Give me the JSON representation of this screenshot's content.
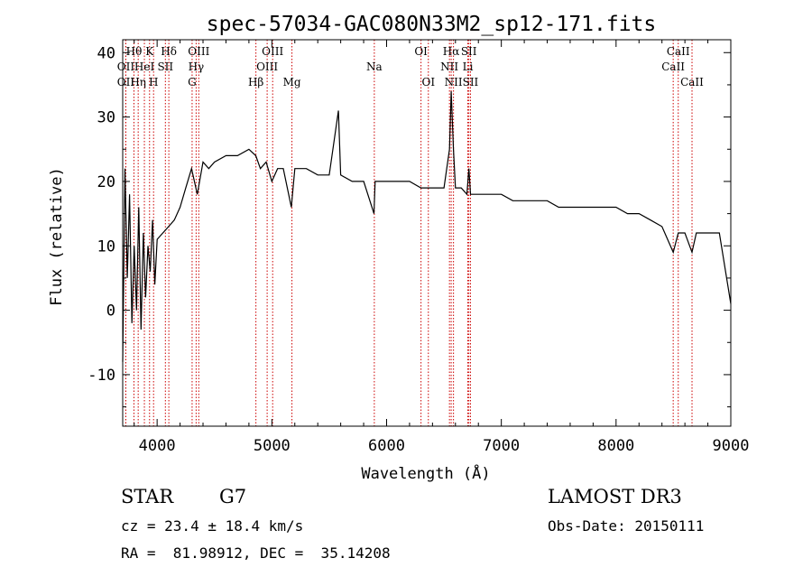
{
  "chart_data": {
    "type": "line",
    "title": "spec-57034-GAC080N33M2_sp12-171.fits",
    "xlabel": "Wavelength (Å)",
    "ylabel": "Flux (relative)",
    "xlim": [
      3700,
      9000
    ],
    "ylim": [
      -18,
      42
    ],
    "xticks": [
      4000,
      5000,
      6000,
      7000,
      8000,
      9000
    ],
    "yticks": [
      -10,
      0,
      10,
      20,
      30,
      40
    ],
    "grid": false,
    "line_color": "#000000",
    "marker_color": "#cc0000",
    "series": [
      {
        "name": "spectrum",
        "x": [
          3700,
          3720,
          3740,
          3760,
          3780,
          3800,
          3820,
          3840,
          3860,
          3880,
          3900,
          3920,
          3940,
          3960,
          3980,
          4000,
          4050,
          4100,
          4150,
          4200,
          4250,
          4300,
          4350,
          4400,
          4450,
          4500,
          4600,
          4700,
          4800,
          4860,
          4900,
          4950,
          5000,
          5050,
          5100,
          5170,
          5200,
          5300,
          5400,
          5500,
          5580,
          5600,
          5700,
          5800,
          5890,
          5900,
          6000,
          6100,
          6200,
          6300,
          6400,
          6500,
          6548,
          6563,
          6583,
          6600,
          6650,
          6700,
          6717,
          6731,
          6800,
          6900,
          7000,
          7100,
          7200,
          7300,
          7400,
          7500,
          7600,
          7700,
          7800,
          7900,
          8000,
          8100,
          8200,
          8300,
          8400,
          8498,
          8542,
          8600,
          8662,
          8700,
          8800,
          8900,
          9000
        ],
        "y": [
          -8,
          22,
          5,
          18,
          -2,
          10,
          0,
          16,
          -3,
          12,
          2,
          10,
          6,
          14,
          4,
          11,
          12,
          13,
          14,
          16,
          19,
          22,
          18,
          23,
          22,
          23,
          24,
          24,
          25,
          24,
          22,
          23,
          20,
          22,
          22,
          16,
          22,
          22,
          21,
          21,
          31,
          21,
          20,
          20,
          15,
          20,
          20,
          20,
          20,
          19,
          19,
          19,
          25,
          34,
          25,
          19,
          19,
          18,
          22,
          18,
          18,
          18,
          18,
          17,
          17,
          17,
          17,
          16,
          16,
          16,
          16,
          16,
          16,
          15,
          15,
          14,
          13,
          9,
          12,
          12,
          9,
          12,
          12,
          12,
          1
        ]
      }
    ],
    "line_markers": [
      {
        "name": "Hθ",
        "wavelength": 3798,
        "row": 0
      },
      {
        "name": "OII",
        "wavelength": 3727,
        "row": 1
      },
      {
        "name": "OII",
        "wavelength": 3727,
        "row": 2
      },
      {
        "name": "K",
        "wavelength": 3934,
        "row": 0
      },
      {
        "name": "Hη",
        "wavelength": 3835,
        "row": 2
      },
      {
        "name": "HeI",
        "wavelength": 3889,
        "row": 1
      },
      {
        "name": "H",
        "wavelength": 3969,
        "row": 2
      },
      {
        "name": "SII",
        "wavelength": 4072,
        "row": 1
      },
      {
        "name": "Hδ",
        "wavelength": 4102,
        "row": 0
      },
      {
        "name": "OIII",
        "wavelength": 4363,
        "row": 0
      },
      {
        "name": "Hγ",
        "wavelength": 4340,
        "row": 1
      },
      {
        "name": "G",
        "wavelength": 4305,
        "row": 2
      },
      {
        "name": "Hβ",
        "wavelength": 4861,
        "row": 2
      },
      {
        "name": "OIII",
        "wavelength": 5007,
        "row": 0
      },
      {
        "name": "OIII",
        "wavelength": 4959,
        "row": 1
      },
      {
        "name": "Mg",
        "wavelength": 5175,
        "row": 2
      },
      {
        "name": "Na",
        "wavelength": 5893,
        "row": 1
      },
      {
        "name": "OI",
        "wavelength": 6300,
        "row": 0
      },
      {
        "name": "OI",
        "wavelength": 6364,
        "row": 2
      },
      {
        "name": "Hα",
        "wavelength": 6563,
        "row": 0
      },
      {
        "name": "NII",
        "wavelength": 6548,
        "row": 1
      },
      {
        "name": "NII",
        "wavelength": 6583,
        "row": 2
      },
      {
        "name": "Li",
        "wavelength": 6708,
        "row": 1
      },
      {
        "name": "SII",
        "wavelength": 6717,
        "row": 0
      },
      {
        "name": "SII",
        "wavelength": 6731,
        "row": 2
      },
      {
        "name": "CaII",
        "wavelength": 8498,
        "row": 1
      },
      {
        "name": "CaII",
        "wavelength": 8542,
        "row": 0
      },
      {
        "name": "CaII",
        "wavelength": 8662,
        "row": 2
      }
    ]
  },
  "info": {
    "class": "STAR",
    "subclass": "G7",
    "survey": "LAMOST DR3",
    "cz": "cz = 23.4 ± 18.4 km/s",
    "obs_date": "Obs-Date: 20150111",
    "radec": "RA =  81.98912, DEC =  35.14208"
  }
}
